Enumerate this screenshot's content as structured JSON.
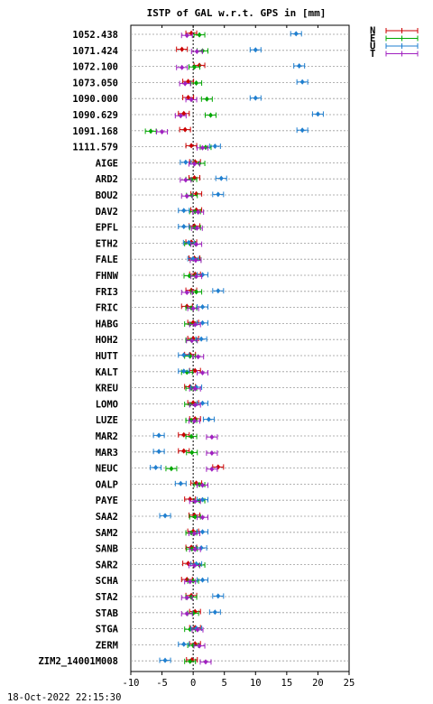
{
  "chart_data": {
    "type": "scatter",
    "title": "ISTP of GAL w.r.t. GPS in [mm]",
    "xlabel": "",
    "ylabel": "",
    "xlim": [
      -10,
      25
    ],
    "xticks": [
      -10,
      -5,
      0,
      5,
      10,
      15,
      20,
      25
    ],
    "grid": true,
    "legend_placement": "top-right",
    "zero_line": 0,
    "timestamp": "18-Oct-2022 22:15:30",
    "series": [
      {
        "name": "N",
        "color": "#cc0000"
      },
      {
        "name": "E",
        "color": "#00a800"
      },
      {
        "name": "U",
        "color": "#1f7fd0"
      },
      {
        "name": "T",
        "color": "#a020c0"
      }
    ],
    "stations": [
      {
        "name": "1052.438",
        "N": -0.3,
        "E": 1.0,
        "U": 16.5,
        "T": -1.0
      },
      {
        "name": "1071.424",
        "N": -1.8,
        "E": 1.5,
        "U": 10.0,
        "T": 0.6
      },
      {
        "name": "1072.100",
        "N": 1.0,
        "E": 0.2,
        "U": 17.0,
        "T": -1.8
      },
      {
        "name": "1073.050",
        "N": -0.8,
        "E": 0.5,
        "U": 17.5,
        "T": -1.3
      },
      {
        "name": "1090.000",
        "N": -0.8,
        "E": 2.2,
        "U": 10.0,
        "T": -0.3
      },
      {
        "name": "1090.629",
        "N": -1.5,
        "E": 2.8,
        "U": 20.0,
        "T": -2.0
      },
      {
        "name": "1091.168",
        "N": -1.3,
        "E": -6.8,
        "U": 17.5,
        "T": -5.0
      },
      {
        "name": "1111.579",
        "N": -0.3,
        "E": 2.0,
        "U": 3.5,
        "T": 1.5
      },
      {
        "name": "AIGE",
        "N": 0.3,
        "E": 1.0,
        "U": -1.2,
        "T": 0.2
      },
      {
        "name": "ARD2",
        "N": 0.2,
        "E": -0.3,
        "U": 4.5,
        "T": -1.2
      },
      {
        "name": "BOU2",
        "N": 0.5,
        "E": -0.2,
        "U": 4.0,
        "T": -1.0
      },
      {
        "name": "DAV2",
        "N": 0.5,
        "E": 0.3,
        "U": -1.5,
        "T": 0.8
      },
      {
        "name": "EPFL",
        "N": 0.2,
        "E": 0.3,
        "U": -1.5,
        "T": 0.6
      },
      {
        "name": "ETH2",
        "N": -0.3,
        "E": -0.5,
        "U": -0.7,
        "T": 0.5
      },
      {
        "name": "FALE",
        "N": 0.2,
        "E": 0.4,
        "U": 0.0,
        "T": 0.4
      },
      {
        "name": "FHNW",
        "N": 0.3,
        "E": -0.6,
        "U": 1.5,
        "T": 0.5
      },
      {
        "name": "FRI3",
        "N": -0.3,
        "E": 0.5,
        "U": 4.0,
        "T": -1.0
      },
      {
        "name": "FRIC",
        "N": -1.0,
        "E": -0.3,
        "U": 1.5,
        "T": 0.0
      },
      {
        "name": "HABG",
        "N": 0.0,
        "E": -0.5,
        "U": 1.5,
        "T": 0.3
      },
      {
        "name": "HOH2",
        "N": 0.0,
        "E": -0.3,
        "U": 1.3,
        "T": -0.2
      },
      {
        "name": "HUTT",
        "N": -0.5,
        "E": -0.5,
        "U": -1.5,
        "T": 0.8
      },
      {
        "name": "KALT",
        "N": 0.3,
        "E": -1.0,
        "U": -1.5,
        "T": 1.5
      },
      {
        "name": "KREU",
        "N": -0.5,
        "E": -0.3,
        "U": 0.5,
        "T": 0.3
      },
      {
        "name": "LOMO",
        "N": 0.0,
        "E": -0.5,
        "U": 1.5,
        "T": 0.3
      },
      {
        "name": "LUZE",
        "N": 0.3,
        "E": -0.3,
        "U": 2.5,
        "T": 0.2
      },
      {
        "name": "MAR2",
        "N": -1.5,
        "E": -0.3,
        "U": -5.5,
        "T": 3.0
      },
      {
        "name": "MAR3",
        "N": -1.5,
        "E": -0.2,
        "U": -5.5,
        "T": 3.0
      },
      {
        "name": "NEUC",
        "N": 4.0,
        "E": -3.5,
        "U": -6.0,
        "T": 3.0
      },
      {
        "name": "OALP",
        "N": 0.5,
        "E": 1.0,
        "U": -2.0,
        "T": 1.5
      },
      {
        "name": "PAYE",
        "N": -0.5,
        "E": 1.0,
        "U": 1.5,
        "T": 0.3
      },
      {
        "name": "SAA2",
        "N": 0.2,
        "E": 0.3,
        "U": -4.5,
        "T": 1.5
      },
      {
        "name": "SAM2",
        "N": 0.0,
        "E": -0.3,
        "U": 1.5,
        "T": 0.2
      },
      {
        "name": "SANB",
        "N": -0.3,
        "E": -0.2,
        "U": 1.3,
        "T": 0.3
      },
      {
        "name": "SAR2",
        "N": -0.8,
        "E": 1.0,
        "U": 0.5,
        "T": 0.2
      },
      {
        "name": "SCHA",
        "N": -1.0,
        "E": 0.0,
        "U": 1.5,
        "T": -0.5
      },
      {
        "name": "STA2",
        "N": -0.3,
        "E": -0.3,
        "U": 4.0,
        "T": -1.0
      },
      {
        "name": "STAB",
        "N": 0.3,
        "E": 0.0,
        "U": 3.5,
        "T": -1.0
      },
      {
        "name": "STGA",
        "N": 0.3,
        "E": -0.5,
        "U": 0.5,
        "T": 0.7
      },
      {
        "name": "ZERM",
        "N": 0.3,
        "E": 0.0,
        "U": -1.5,
        "T": 1.0
      },
      {
        "name": "ZIM2_14001M008",
        "N": -0.2,
        "E": -0.5,
        "U": -4.5,
        "T": 2.0
      }
    ]
  }
}
